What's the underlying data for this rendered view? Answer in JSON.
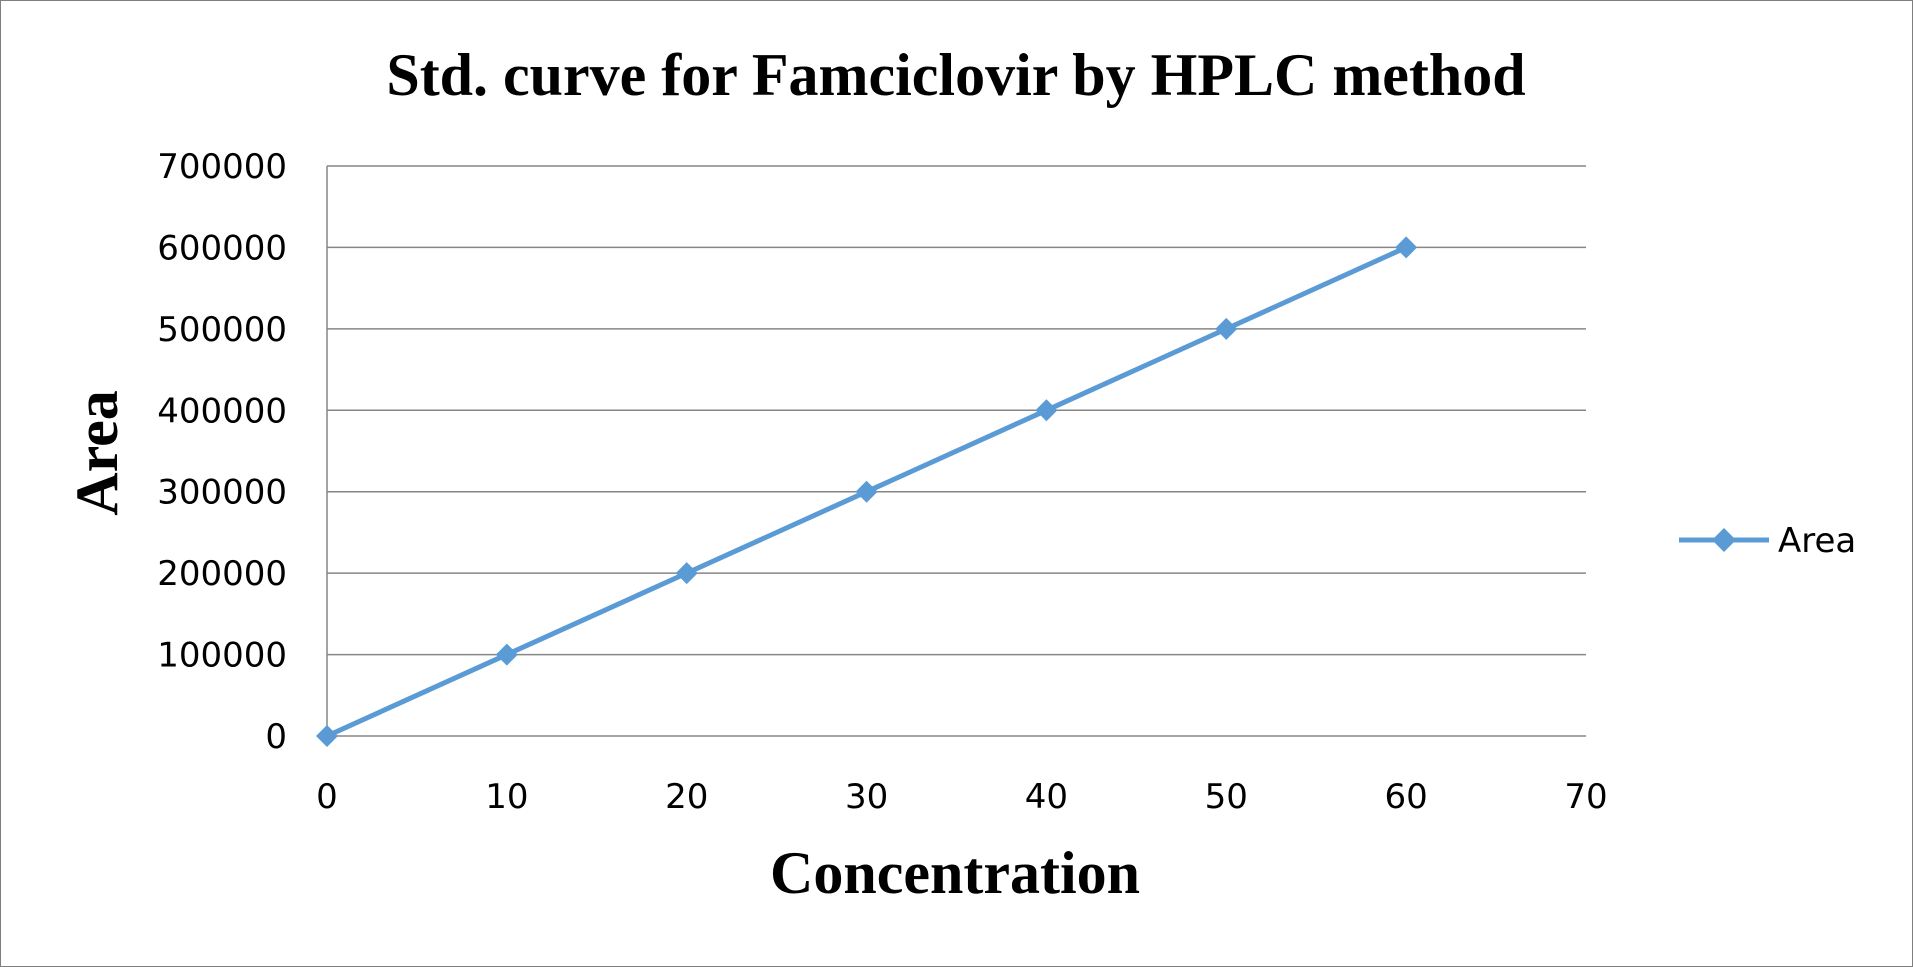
{
  "chart_data": {
    "type": "line",
    "title": "Std. curve for Famciclovir by HPLC method",
    "xlabel": "Concentration",
    "ylabel": "Area",
    "xlim": [
      0,
      70
    ],
    "ylim": [
      0,
      700000
    ],
    "x_ticks": [
      "0",
      "10",
      "20",
      "30",
      "40",
      "50",
      "60",
      "70"
    ],
    "y_ticks": [
      "0",
      "100000",
      "200000",
      "300000",
      "400000",
      "500000",
      "600000",
      "700000"
    ],
    "grid": "horizontal",
    "legend_position": "right",
    "series": [
      {
        "name": "Area",
        "color": "#5B9BD5",
        "marker": "diamond",
        "x": [
          0,
          10,
          20,
          30,
          40,
          50,
          60
        ],
        "y": [
          0,
          100000,
          200000,
          300000,
          400000,
          500000,
          600000
        ]
      }
    ]
  },
  "colors": {
    "gridline": "#868686",
    "frame": "#7f7f7f"
  }
}
